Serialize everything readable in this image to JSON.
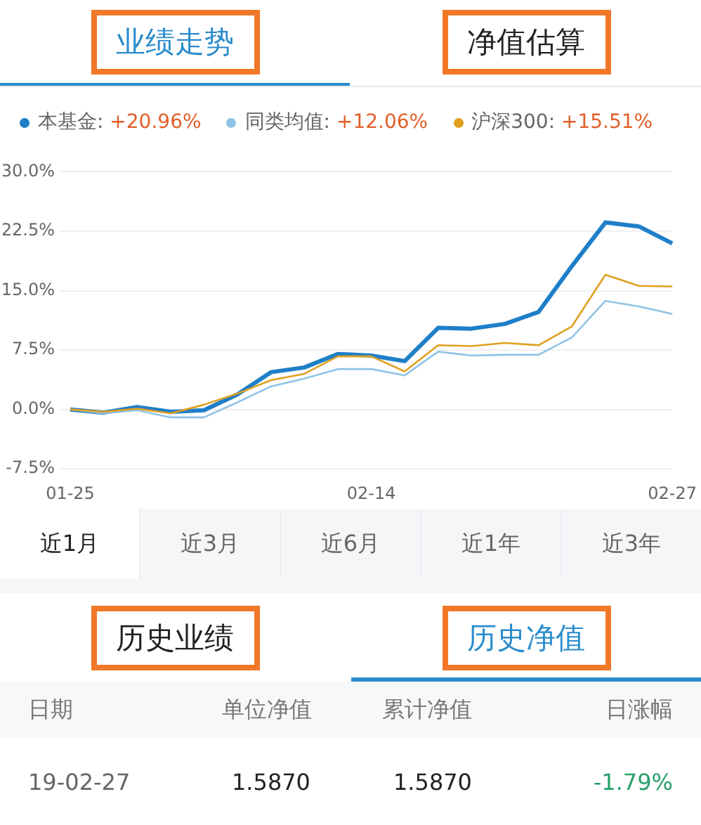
{
  "chart_data": {
    "type": "line",
    "categories": [
      "01-25",
      null,
      null,
      null,
      null,
      null,
      null,
      null,
      null,
      "02-14",
      null,
      null,
      null,
      null,
      null,
      null,
      null,
      null,
      "02-27"
    ],
    "series": [
      {
        "name": "本基金: +20.96%",
        "color": "#1f7fc8",
        "values": [
          0,
          -0.4,
          0.3,
          -0.3,
          -0.1,
          1.9,
          4.7,
          5.3,
          7.0,
          6.8,
          6.1,
          10.3,
          10.2,
          10.8,
          12.3,
          18.1,
          23.6,
          23.1,
          20.96
        ]
      },
      {
        "name": "同类均值: +12.06%",
        "color": "#8fc3e6",
        "values": [
          0,
          -0.5,
          -0.1,
          -1.0,
          -1.0,
          0.9,
          2.9,
          3.9,
          5.1,
          5.1,
          4.3,
          7.3,
          6.8,
          6.9,
          6.9,
          9.1,
          13.7,
          13.0,
          12.06
        ]
      },
      {
        "name": "沪深300: +15.51%",
        "color": "#e0a020",
        "values": [
          0,
          -0.3,
          0.1,
          -0.5,
          0.6,
          2.0,
          3.7,
          4.5,
          6.7,
          6.7,
          4.8,
          8.1,
          8.0,
          8.4,
          8.1,
          10.5,
          17.0,
          15.6,
          15.51
        ]
      }
    ],
    "ylim": [
      -7.5,
      30
    ],
    "yticks": [
      {
        "value": -7.5,
        "label": "-7.5%"
      },
      {
        "value": 0,
        "label": "0.0%"
      },
      {
        "value": 7.5,
        "label": "7.5%"
      },
      {
        "value": 15,
        "label": "15.0%"
      },
      {
        "value": 22.5,
        "label": "22.5%"
      },
      {
        "value": 30,
        "label": "30.0%"
      }
    ],
    "grid": "y",
    "legend": "top",
    "marker": "none",
    "annotations": [
      "业绩走势",
      "净值估算",
      "近1月",
      "近3月",
      "近6月",
      "近1年",
      "近3年",
      "历史业绩",
      "历史净值",
      "日期",
      "单位净值",
      "累计净值",
      "日涨幅",
      "19-02-27",
      "1.5870",
      "1.5870",
      "-1.79%"
    ]
  }
}
